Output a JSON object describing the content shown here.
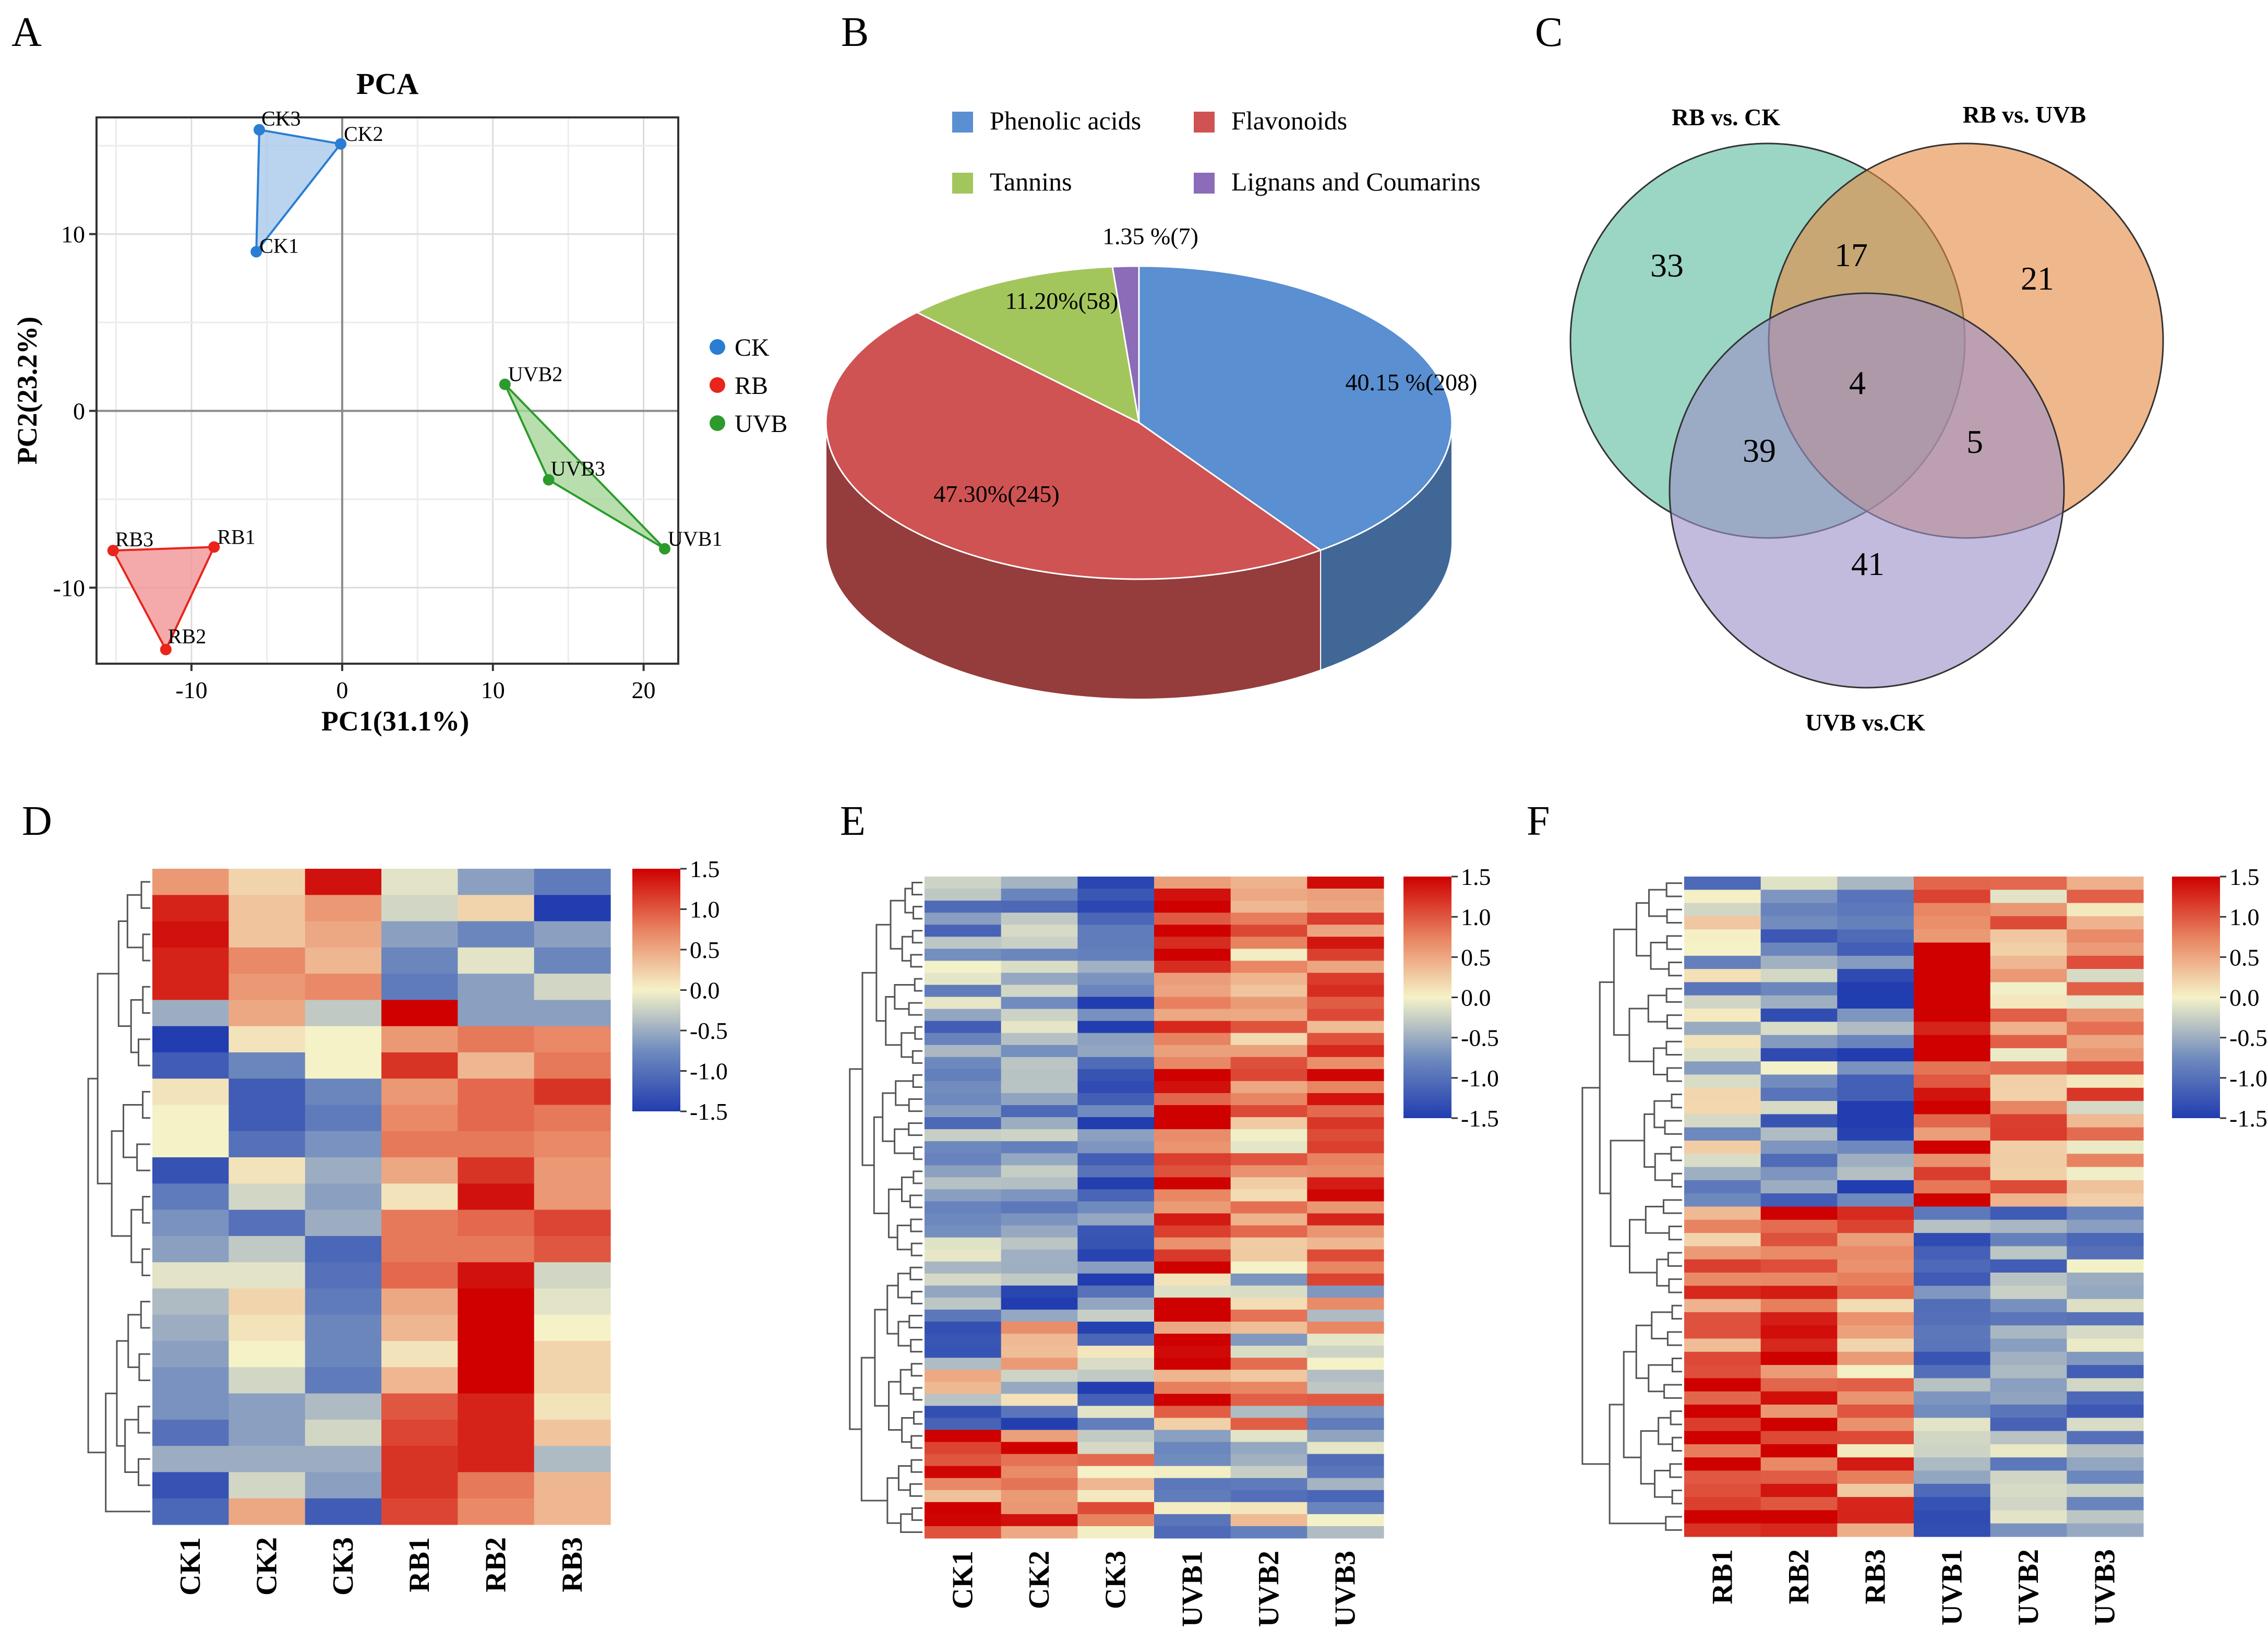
{
  "chart_data": [
    {
      "panel": "A",
      "type": "scatter",
      "title": "PCA",
      "xlabel": "PC1(31.1%)",
      "ylabel": "PC2(23.2%)",
      "xlim": [
        -16.3,
        22.3
      ],
      "ylim": [
        -14.3,
        16.6
      ],
      "xticks": [
        -10,
        0,
        10,
        20
      ],
      "yticks": [
        10,
        0,
        -10
      ],
      "grid": true,
      "legend_position": "right",
      "colors": {
        "CK": "#2a7dd3",
        "RB": "#e8241b",
        "UVB": "#2c9b2c"
      },
      "fill_colors": {
        "CK": "#a9c9ec",
        "RB": "#f19596",
        "UVB": "#a6d69a"
      },
      "series": [
        {
          "name": "CK",
          "points": [
            {
              "label": "CK1",
              "x": -5.7,
              "y": 9.0
            },
            {
              "label": "CK2",
              "x": -0.1,
              "y": 15.1
            },
            {
              "label": "CK3",
              "x": -5.5,
              "y": 15.9
            }
          ]
        },
        {
          "name": "RB",
          "points": [
            {
              "label": "RB1",
              "x": -8.5,
              "y": -7.7
            },
            {
              "label": "RB2",
              "x": -11.7,
              "y": -13.5
            },
            {
              "label": "RB3",
              "x": -15.2,
              "y": -7.9
            }
          ]
        },
        {
          "name": "UVB",
          "points": [
            {
              "label": "UVB1",
              "x": 21.4,
              "y": -7.8
            },
            {
              "label": "UVB2",
              "x": 10.8,
              "y": 1.5
            },
            {
              "label": "UVB3",
              "x": 13.7,
              "y": -3.9
            }
          ]
        }
      ]
    },
    {
      "panel": "B",
      "type": "pie",
      "legend_position": "top",
      "slices": [
        {
          "name": "Phenolic acids",
          "percent": 40.15,
          "count": 208,
          "label": "40.15 %(208)",
          "color": "#5a8fd1"
        },
        {
          "name": "Flavonoids",
          "percent": 47.3,
          "count": 245,
          "label": "47.30%(245)",
          "color": "#cf5353"
        },
        {
          "name": "Tannins",
          "percent": 11.2,
          "count": 58,
          "label": "11.20%(58)",
          "color": "#a2c65c"
        },
        {
          "name": "Lignans and Coumarins",
          "percent": 1.35,
          "count": 7,
          "label": "1.35 %(7)",
          "color": "#8c6bb8"
        }
      ]
    },
    {
      "panel": "C",
      "type": "venn",
      "sets": [
        {
          "name": "RB vs. CK",
          "color": "#5cbd9e"
        },
        {
          "name": "RB  vs. UVB",
          "color": "#e58a45"
        },
        {
          "name": "UVB vs.CK",
          "color": "#9d92c8"
        }
      ],
      "regions": [
        {
          "sets": [
            "RB vs. CK"
          ],
          "value": 33
        },
        {
          "sets": [
            "RB  vs. UVB"
          ],
          "value": 21
        },
        {
          "sets": [
            "UVB vs.CK"
          ],
          "value": 41
        },
        {
          "sets": [
            "RB vs. CK",
            "RB  vs. UVB"
          ],
          "value": 17
        },
        {
          "sets": [
            "RB vs. CK",
            "UVB vs.CK"
          ],
          "value": 39
        },
        {
          "sets": [
            "RB  vs. UVB",
            "UVB vs.CK"
          ],
          "value": 5
        },
        {
          "sets": [
            "RB vs. CK",
            "RB  vs. UVB",
            "UVB vs.CK"
          ],
          "value": 4
        }
      ]
    },
    {
      "panel": "D",
      "type": "heatmap",
      "columns": [
        "CK1",
        "CK2",
        "CK3",
        "RB1",
        "RB2",
        "RB3"
      ],
      "n_rows": 25,
      "scale": {
        "min": -1.5,
        "max": 1.5,
        "ticks": [
          "1.5",
          "1.0",
          "0.5",
          "0.0",
          "-0.5",
          "-1.0",
          "-1.5"
        ]
      },
      "values": [
        [
          0.6,
          0.2,
          1.4,
          -0.1,
          -0.6,
          -0.9
        ],
        [
          1.3,
          0.3,
          0.6,
          -0.2,
          0.2,
          -1.6
        ],
        [
          1.4,
          0.3,
          0.5,
          -0.6,
          -0.8,
          -0.6
        ],
        [
          1.3,
          0.7,
          0.4,
          -0.8,
          -0.1,
          -0.8
        ],
        [
          1.3,
          0.6,
          0.7,
          -0.9,
          -0.6,
          -0.2
        ],
        [
          -0.5,
          0.5,
          -0.3,
          1.5,
          -0.6,
          -0.6
        ],
        [
          -1.6,
          0.1,
          0.0,
          0.6,
          0.8,
          0.7
        ],
        [
          -1.2,
          -0.8,
          0.0,
          1.2,
          0.4,
          0.8
        ],
        [
          0.1,
          -1.2,
          -0.8,
          0.6,
          0.9,
          1.2
        ],
        [
          0.0,
          -1.2,
          -0.9,
          0.7,
          0.9,
          0.8
        ],
        [
          0.0,
          -1.0,
          -0.7,
          0.8,
          0.8,
          0.7
        ],
        [
          -1.3,
          0.1,
          -0.5,
          0.5,
          1.2,
          0.6
        ],
        [
          -0.9,
          -0.2,
          -0.6,
          0.1,
          1.4,
          0.6
        ],
        [
          -0.7,
          -1.0,
          -0.5,
          0.8,
          0.9,
          1.1
        ],
        [
          -0.6,
          -0.3,
          -1.1,
          0.8,
          0.8,
          1.0
        ],
        [
          -0.1,
          -0.1,
          -1.0,
          0.9,
          1.4,
          -0.2
        ],
        [
          -0.4,
          0.2,
          -0.9,
          0.5,
          1.5,
          -0.1
        ],
        [
          -0.5,
          0.1,
          -0.8,
          0.4,
          1.5,
          0.0
        ],
        [
          -0.6,
          0.0,
          -0.8,
          0.1,
          1.5,
          0.2
        ],
        [
          -0.7,
          -0.2,
          -0.9,
          0.4,
          1.5,
          0.2
        ],
        [
          -0.7,
          -0.6,
          -0.4,
          1.0,
          1.3,
          0.1
        ],
        [
          -1.0,
          -0.6,
          -0.2,
          1.1,
          1.3,
          0.3
        ],
        [
          -0.5,
          -0.5,
          -0.5,
          1.2,
          1.3,
          -0.4
        ],
        [
          -1.3,
          -0.2,
          -0.6,
          1.2,
          0.8,
          0.4
        ],
        [
          -1.1,
          0.5,
          -1.2,
          1.1,
          0.7,
          0.4
        ]
      ]
    },
    {
      "panel": "E",
      "type": "heatmap",
      "columns": [
        "CK1",
        "CK2",
        "CK3",
        "UVB1",
        "UVB2",
        "UVB3"
      ],
      "n_rows": 55,
      "scale": {
        "min": -1.5,
        "max": 1.5,
        "ticks": [
          "1.5",
          "1.0",
          "0.5",
          "0.0",
          "-0.5",
          "-1.0",
          "-1.5"
        ]
      },
      "blocks": [
        {
          "rows": 33,
          "means": [
            -0.6,
            -0.6,
            -1.0,
            1.1,
            0.5,
            0.9
          ],
          "spread": 0.3
        },
        {
          "rows": 13,
          "means": [
            -0.5,
            -0.4,
            -0.7,
            0.9,
            0.4,
            0.3
          ],
          "spread": 0.6
        },
        {
          "rows": 9,
          "means": [
            0.9,
            1.0,
            0.5,
            -0.7,
            -0.3,
            -0.6
          ],
          "spread": 0.4
        }
      ]
    },
    {
      "panel": "F",
      "type": "heatmap",
      "columns": [
        "RB1",
        "RB2",
        "RB3",
        "UVB1",
        "UVB2",
        "UVB3"
      ],
      "n_rows": 50,
      "scale": {
        "min": -1.5,
        "max": 1.5,
        "ticks": [
          "1.5",
          "1.0",
          "0.5",
          "0.0",
          "-0.5",
          "-1.0",
          "-1.5"
        ]
      },
      "blocks": [
        {
          "rows": 25,
          "means": [
            -0.4,
            -0.7,
            -1.0,
            1.2,
            0.6,
            0.5
          ],
          "spread": 0.35
        },
        {
          "rows": 25,
          "means": [
            0.9,
            1.1,
            0.7,
            -0.7,
            -0.7,
            -0.7
          ],
          "spread": 0.35
        }
      ]
    }
  ],
  "panel_labels": [
    "A",
    "B",
    "C",
    "D",
    "E",
    "F"
  ]
}
